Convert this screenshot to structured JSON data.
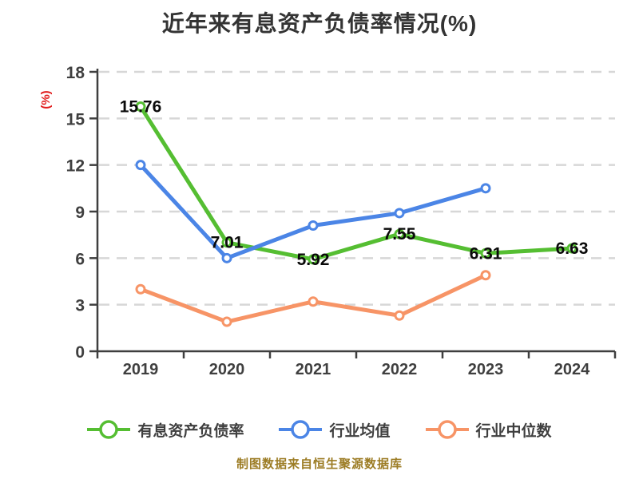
{
  "title": "近年来有息资产负债率情况(%)",
  "footer": "制图数据来自恒生聚源数据库",
  "colors": {
    "title_text": "#333333",
    "axis": "#3f3f3f",
    "tick_text": "#3f3f3f",
    "grid": "#d7d7d7",
    "ylabel_red": "#e11b1b",
    "data_label": "#0a0a0a",
    "footer_text": "#9c7c24",
    "marker_fill": "#ffffff"
  },
  "chart_data": {
    "type": "line",
    "title": "近年来有息资产负债率情况(%)",
    "xlabel": "",
    "ylabel": "(%)",
    "categories": [
      "2019",
      "2020",
      "2021",
      "2022",
      "2023",
      "2024"
    ],
    "yticks": [
      0,
      3,
      6,
      9,
      12,
      15,
      18
    ],
    "ylim": [
      0,
      18
    ],
    "grid": "horizontal-dashed",
    "legend_position": "bottom",
    "series": [
      {
        "name": "有息资产负债率",
        "color": "#55be32",
        "values": [
          15.76,
          7.01,
          5.92,
          7.55,
          6.31,
          6.63
        ],
        "show_labels": true
      },
      {
        "name": "行业均值",
        "color": "#4b85e6",
        "values": [
          12.0,
          6.0,
          8.1,
          8.9,
          10.5,
          null
        ],
        "show_labels": false
      },
      {
        "name": "行业中位数",
        "color": "#f79466",
        "values": [
          4.0,
          1.9,
          3.2,
          2.3,
          4.9,
          null
        ],
        "show_labels": false
      }
    ]
  }
}
